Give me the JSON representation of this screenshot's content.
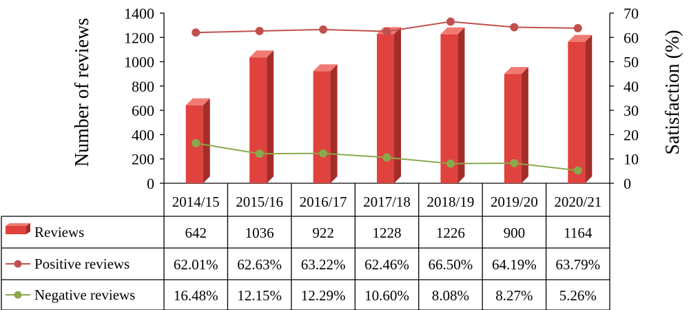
{
  "chart_data": {
    "type": "bar",
    "categories": [
      "2014/15",
      "2015/16",
      "2016/17",
      "2017/18",
      "2018/19",
      "2019/20",
      "2020/21"
    ],
    "y_left": {
      "label": "Number of reviews",
      "range": [
        0,
        1400
      ],
      "ticks": [
        0,
        200,
        400,
        600,
        800,
        1000,
        1200,
        1400
      ]
    },
    "y_right": {
      "label": "Satisfaction (%)",
      "range": [
        0,
        70
      ],
      "ticks": [
        0,
        10,
        20,
        30,
        40,
        50,
        60,
        70
      ]
    },
    "grid": false,
    "legend_placement": "data-table",
    "series": [
      {
        "name": "Reviews",
        "kind": "bar3d",
        "axis": "left",
        "color": "#e0423d",
        "values": [
          642,
          1036,
          922,
          1228,
          1226,
          900,
          1164
        ],
        "labels": [
          "642",
          "1036",
          "922",
          "1228",
          "1226",
          "900",
          "1164"
        ]
      },
      {
        "name": "Positive reviews",
        "kind": "line",
        "axis": "right",
        "color": "#c0504d",
        "values": [
          62.01,
          62.63,
          63.22,
          62.46,
          66.5,
          64.19,
          63.79
        ],
        "labels": [
          "62.01%",
          "62.63%",
          "63.22%",
          "62.46%",
          "66.50%",
          "64.19%",
          "63.79%"
        ]
      },
      {
        "name": "Negative reviews",
        "kind": "line",
        "axis": "right",
        "color": "#8aa84c",
        "values": [
          16.48,
          12.15,
          12.29,
          10.6,
          8.08,
          8.27,
          5.26
        ],
        "labels": [
          "16.48%",
          "12.15%",
          "12.29%",
          "10.60%",
          "8.08%",
          "8.27%",
          "5.26%"
        ]
      }
    ]
  }
}
